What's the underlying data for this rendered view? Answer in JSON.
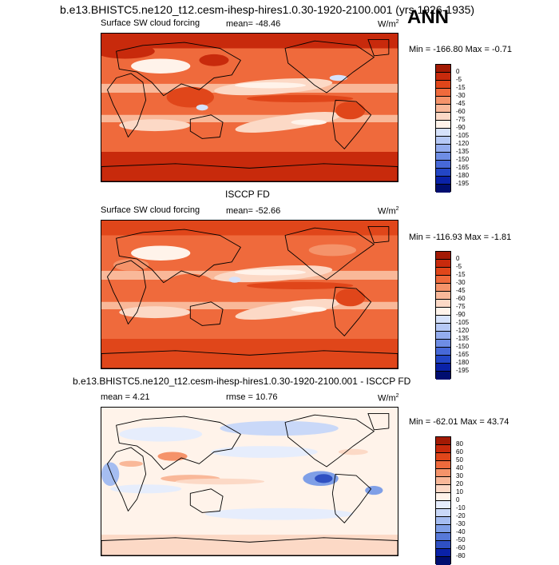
{
  "figure": {
    "main_title": "b.e13.BHISTC5.ne120_t12.cesm-ihesp-hires1.0.30-1920-2100.001 (yrs 1926-1935)",
    "season": "ANN"
  },
  "chart_data": [
    {
      "type": "heatmap",
      "id": "model",
      "panel_label": "",
      "left_label": "Surface SW cloud forcing",
      "center_label": "mean= -48.46",
      "units_base": "W/m",
      "units_exp": "2",
      "minmax": "Min = -166.80 Max =  -0.71",
      "levels": [
        "0",
        "-5",
        "-15",
        "-30",
        "-45",
        "-60",
        "-75",
        "-90",
        "-105",
        "-120",
        "-135",
        "-150",
        "-165",
        "-180",
        "-195"
      ],
      "colors": [
        "#a31a04",
        "#c82a0c",
        "#e0461a",
        "#ef6a3c",
        "#f5936a",
        "#f9b899",
        "#fcd9c6",
        "#fff3ea",
        "#d6e2fb",
        "#b6c9f6",
        "#93acee",
        "#6e8de4",
        "#4769d8",
        "#2346c6",
        "#0a22a8",
        "#000e70"
      ]
    },
    {
      "type": "heatmap",
      "id": "obs",
      "panel_label": "ISCCP FD",
      "left_label": "Surface SW cloud forcing",
      "center_label": "mean= -52.66",
      "units_base": "W/m",
      "units_exp": "2",
      "minmax": "Min = -116.93 Max =  -1.81",
      "levels": [
        "0",
        "-5",
        "-15",
        "-30",
        "-45",
        "-60",
        "-75",
        "-90",
        "-105",
        "-120",
        "-135",
        "-150",
        "-165",
        "-180",
        "-195"
      ],
      "colors": [
        "#a31a04",
        "#c82a0c",
        "#e0461a",
        "#ef6a3c",
        "#f5936a",
        "#f9b899",
        "#fcd9c6",
        "#fff3ea",
        "#d6e2fb",
        "#b6c9f6",
        "#93acee",
        "#6e8de4",
        "#4769d8",
        "#2346c6",
        "#0a22a8",
        "#000e70"
      ]
    },
    {
      "type": "heatmap",
      "id": "diff",
      "panel_label": "b.e13.BHISTC5.ne120_t12.cesm-ihesp-hires1.0.30-1920-2100.001 - ISCCP FD",
      "left_label": "mean =  4.21",
      "center_label": "rmse =  10.76",
      "units_base": "W/m",
      "units_exp": "2",
      "minmax": "Min = -62.01 Max =  43.74",
      "levels": [
        "80",
        "60",
        "50",
        "40",
        "30",
        "20",
        "10",
        "0",
        "-10",
        "-20",
        "-30",
        "-40",
        "-50",
        "-60",
        "-80"
      ],
      "colors": [
        "#a31a04",
        "#c82a0c",
        "#e0461a",
        "#ef6a3c",
        "#f5936a",
        "#f9b899",
        "#fcd9c6",
        "#fff3ea",
        "#e6edfc",
        "#c9d8f8",
        "#a5bdf1",
        "#7f9fe7",
        "#5779d9",
        "#2f50c2",
        "#0a22a8",
        "#000e70"
      ]
    }
  ]
}
